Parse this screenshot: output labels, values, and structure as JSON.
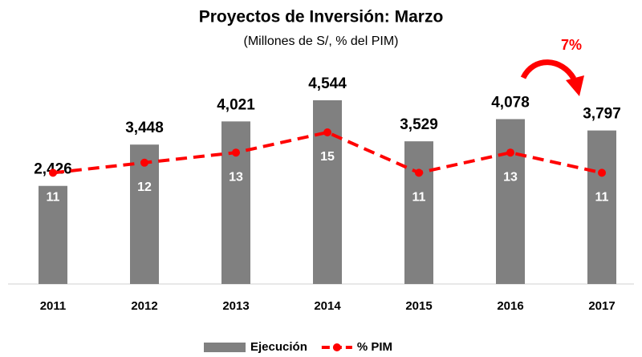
{
  "chart_data": {
    "type": "bar_line",
    "title": "Proyectos de Inversión: Marzo",
    "subtitle": "(Millones de S/, % del PIM)",
    "annotation": "7%",
    "categories": [
      "2011",
      "2012",
      "2013",
      "2014",
      "2015",
      "2016",
      "2017"
    ],
    "series": [
      {
        "name": "Ejecución",
        "type": "bar",
        "color": "#808080",
        "values": [
          2426,
          3448,
          4021,
          4544,
          3529,
          4078,
          3797
        ],
        "value_labels": [
          "2,426",
          "3,448",
          "4,021",
          "4,544",
          "3,529",
          "4,078",
          "3,797"
        ]
      },
      {
        "name": "% PIM",
        "type": "line",
        "axis": "y2",
        "color": "#ff0000",
        "dashed": true,
        "values": [
          11,
          12,
          13,
          15,
          11,
          13,
          11
        ]
      }
    ],
    "ylim": [
      0,
      5000
    ],
    "y2lim": [
      0,
      20
    ],
    "legend": "bottom"
  }
}
